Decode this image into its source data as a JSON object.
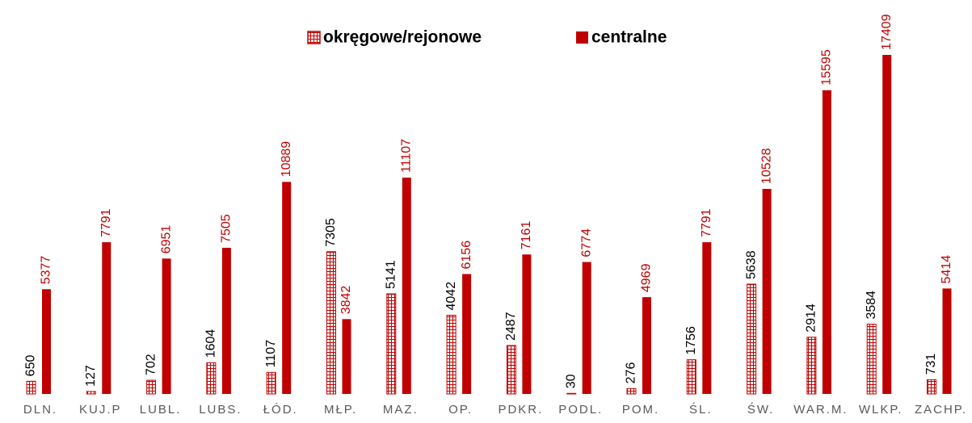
{
  "chart_data": {
    "type": "bar",
    "categories": [
      "DLN.",
      "KUJ.P",
      "LUBL.",
      "LUBS.",
      "ŁÓD.",
      "MŁP.",
      "MAZ.",
      "OP.",
      "PDKR.",
      "PODL.",
      "POM.",
      "ŚL.",
      "ŚW.",
      "WAR.M.",
      "WLKP.",
      "ZACHP."
    ],
    "series": [
      {
        "name": "okręgowe/rejonowe",
        "color": "#c00000",
        "values": [
          650,
          127,
          702,
          1604,
          1107,
          7305,
          5141,
          4042,
          2487,
          30,
          276,
          1756,
          5638,
          2914,
          3584,
          731
        ]
      },
      {
        "name": "centralne",
        "color": "#c00000",
        "values": [
          5377,
          7791,
          6951,
          7505,
          10889,
          3842,
          11107,
          6156,
          7161,
          6774,
          4969,
          7791,
          10528,
          15595,
          17409,
          5414
        ]
      }
    ],
    "value_label_colors": [
      "#000000",
      "#c00000"
    ],
    "legend": "top"
  }
}
